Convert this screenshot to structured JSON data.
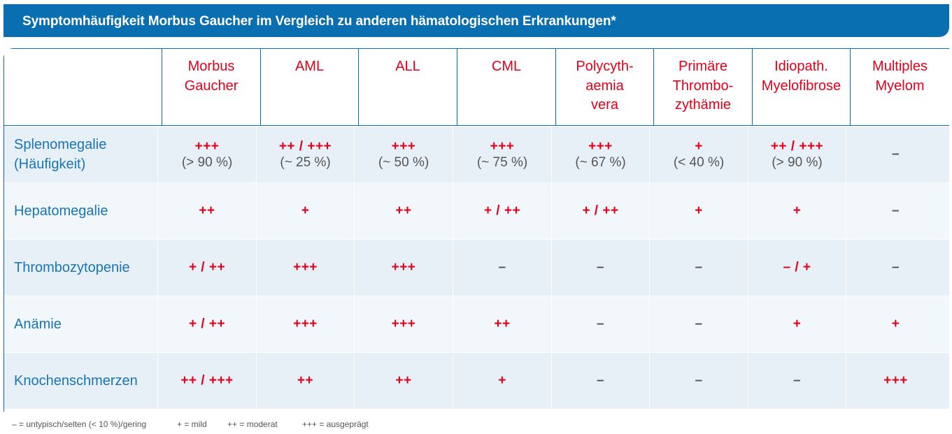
{
  "title": "Symptomhäufigkeit Morbus Gaucher im Vergleich zu anderen hämatologischen Erkrankungen*",
  "columns": [
    "Morbus\nGaucher",
    "AML",
    "ALL",
    "CML",
    "Polycyth-\naemia\nvera",
    "Primäre\nThrombo-\nzythämie",
    "Idiopath.\nMyelofibrose",
    "Multiples\nMyelom"
  ],
  "rows": [
    {
      "label": "Splenomegalie\n(Häufigkeit)",
      "cells": [
        {
          "sym": "+++",
          "pct": "(> 90 %)"
        },
        {
          "sym": "++ / +++",
          "pct": "(~ 25 %)"
        },
        {
          "sym": "+++",
          "pct": "(~ 50 %)"
        },
        {
          "sym": "+++",
          "pct": "(~ 75 %)"
        },
        {
          "sym": "+++",
          "pct": "(~ 67 %)"
        },
        {
          "sym": "+",
          "pct": "(< 40 %)"
        },
        {
          "sym": "++ / +++",
          "pct": "(> 90 %)"
        },
        {
          "sym": "–",
          "pct": ""
        }
      ]
    },
    {
      "label": "Hepatomegalie",
      "cells": [
        {
          "sym": "++",
          "pct": ""
        },
        {
          "sym": "+",
          "pct": ""
        },
        {
          "sym": "++",
          "pct": ""
        },
        {
          "sym": "+ / ++",
          "pct": ""
        },
        {
          "sym": "+ / ++",
          "pct": ""
        },
        {
          "sym": "+",
          "pct": ""
        },
        {
          "sym": "+",
          "pct": ""
        },
        {
          "sym": "–",
          "pct": ""
        }
      ]
    },
    {
      "label": "Thrombozytopenie",
      "cells": [
        {
          "sym": "+ / ++",
          "pct": ""
        },
        {
          "sym": "+++",
          "pct": ""
        },
        {
          "sym": "+++",
          "pct": ""
        },
        {
          "sym": "–",
          "pct": ""
        },
        {
          "sym": "–",
          "pct": ""
        },
        {
          "sym": "–",
          "pct": ""
        },
        {
          "sym": "– / +",
          "pct": ""
        },
        {
          "sym": "–",
          "pct": ""
        }
      ]
    },
    {
      "label": "Anämie",
      "cells": [
        {
          "sym": "+ / ++",
          "pct": ""
        },
        {
          "sym": "+++",
          "pct": ""
        },
        {
          "sym": "+++",
          "pct": ""
        },
        {
          "sym": "++",
          "pct": ""
        },
        {
          "sym": "–",
          "pct": ""
        },
        {
          "sym": "–",
          "pct": ""
        },
        {
          "sym": "+",
          "pct": ""
        },
        {
          "sym": "+",
          "pct": ""
        }
      ]
    },
    {
      "label": "Knochenschmerzen",
      "cells": [
        {
          "sym": "++ / +++",
          "pct": ""
        },
        {
          "sym": "++",
          "pct": ""
        },
        {
          "sym": "++",
          "pct": ""
        },
        {
          "sym": "+",
          "pct": ""
        },
        {
          "sym": "–",
          "pct": ""
        },
        {
          "sym": "–",
          "pct": ""
        },
        {
          "sym": "–",
          "pct": ""
        },
        {
          "sym": "+++",
          "pct": ""
        }
      ]
    }
  ],
  "legend": [
    "– = untypisch/selten (< 10 %)/gering",
    "+ = mild",
    "++ = moderat",
    "+++ = ausgeprägt"
  ],
  "colors": {
    "brand_blue": "#0a6fb0",
    "symbol_red": "#e2001a",
    "label_blue": "#1a74b4"
  }
}
